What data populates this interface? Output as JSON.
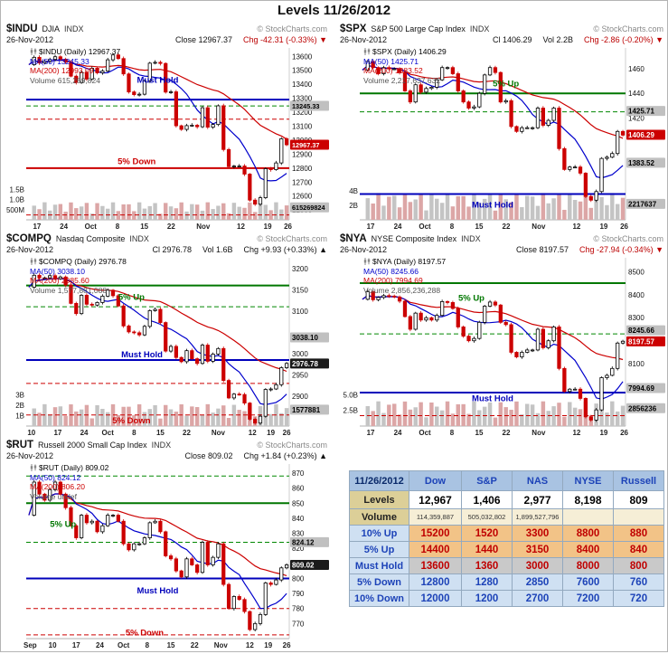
{
  "page_title": "Levels 11/26/2012",
  "chart_data": [
    {
      "type": "candlestick",
      "symbol": "$INDU",
      "name": "DJIA",
      "exchange": "INDX",
      "copyright": "© StockCharts.com",
      "date": "26-Nov-2012",
      "quote": "Close 12967.37",
      "vol": "",
      "chg": "Chg -42.31 (-0.33%) ▼",
      "dir": "down",
      "legend": {
        "main": "$INDU (Daily) 12967.37",
        "ma50": "MA(50) 13245.33",
        "ma200": "MA(200) 12993.09",
        "volume": "Volume 615,269,824"
      },
      "y_min": 12430,
      "y_max": 13660,
      "y_ticks": [
        13600,
        13500,
        13400,
        13300,
        13200,
        13100,
        13000,
        12900,
        12800,
        12700,
        12600,
        12500
      ],
      "vol_ticks": [
        {
          "t": "1.5B",
          "v": 1.5
        },
        {
          "t": "1.0B",
          "v": 1.0
        },
        {
          "t": "500M",
          "v": 0.5
        }
      ],
      "vol_max": 2.2,
      "vol_avg": 0.72,
      "tags": [
        {
          "t": "13245.33",
          "v": 13245.33,
          "k": "gray"
        },
        {
          "t": "12967.37",
          "v": 12967.37,
          "k": "red"
        },
        {
          "t": "615269824",
          "vol": 0.615,
          "k": "gray"
        }
      ],
      "levels": [
        {
          "v": 13290,
          "c": "#0000bb",
          "s": "solid",
          "w": 2
        },
        {
          "v": 13245,
          "c": "#008800",
          "s": "dash",
          "w": 1
        },
        {
          "v": 13150,
          "c": "#cc0000",
          "s": "dash",
          "w": 1
        },
        {
          "v": 12800,
          "c": "#cc0000",
          "s": "solid",
          "w": 2
        },
        {
          "v": 12465,
          "c": "#cc0000",
          "s": "dash",
          "w": 1
        }
      ],
      "ann": [
        {
          "t": "Must Hold",
          "v": 13430,
          "x": 0.5,
          "c": "#0000bb"
        },
        {
          "t": "5% Down",
          "v": 12848,
          "x": 0.42,
          "c": "#cc0000"
        }
      ],
      "x_labels": [
        {
          "t": "17",
          "f": 0.041
        },
        {
          "t": "24",
          "f": 0.143
        },
        {
          "t": "Oct",
          "f": 0.245
        },
        {
          "t": "8",
          "f": 0.347
        },
        {
          "t": "15",
          "f": 0.449
        },
        {
          "t": "22",
          "f": 0.551
        },
        {
          "t": "Nov",
          "f": 0.673
        },
        {
          "t": "12",
          "f": 0.816
        },
        {
          "t": "19",
          "f": 0.918
        },
        {
          "t": "26",
          "f": 0.995
        }
      ],
      "closes": [
        13540,
        13593,
        13553,
        13565,
        13578,
        13597,
        13579,
        13559,
        13458,
        13413,
        13485,
        13437,
        13515,
        13482,
        13495,
        13575,
        13610,
        13584,
        13474,
        13345,
        13326,
        13329,
        13424,
        13551,
        13557,
        13549,
        13344,
        13346,
        13103,
        13077,
        13104,
        13107,
        13096,
        13232,
        13093,
        13112,
        13246,
        12933,
        12811,
        12815,
        12815,
        12757,
        12571,
        12542,
        12588,
        12796,
        12789,
        12837,
        13010,
        12967
      ]
    },
    {
      "type": "candlestick",
      "symbol": "$SPX",
      "name": "S&P 500 Large Cap Index",
      "exchange": "INDX",
      "copyright": "© StockCharts.com",
      "date": "26-Nov-2012",
      "quote": "Cl 1406.29",
      "vol": "Vol 2.2B",
      "chg": "Chg -2.86 (-0.20%) ▼",
      "dir": "down",
      "legend": {
        "main": "$SPX (Daily) 1406.29",
        "ma50": "MA(50) 1425.71",
        "ma200": "MA(200) 1383.52",
        "volume": "Volume 2,217,637,632"
      },
      "y_min": 1337,
      "y_max": 1477,
      "y_ticks": [
        1460,
        1440,
        1420
      ],
      "vol_ticks": [
        {
          "t": "4B",
          "v": 4
        },
        {
          "t": "2B",
          "v": 2
        }
      ],
      "vol_max": 6.2,
      "vol_avg": 3.1,
      "tags": [
        {
          "t": "1425.71",
          "v": 1425.71,
          "k": "gray"
        },
        {
          "t": "1406.29",
          "v": 1406.29,
          "k": "red"
        },
        {
          "t": "1383.52",
          "v": 1383.52,
          "k": "gray"
        },
        {
          "t": "2217637",
          "vol": 2.217,
          "k": "gray"
        }
      ],
      "levels": [
        {
          "v": 1440,
          "c": "#007700",
          "s": "solid",
          "w": 2
        },
        {
          "v": 1425,
          "c": "#008800",
          "s": "dash",
          "w": 1
        },
        {
          "v": 1358,
          "c": "#0000bb",
          "s": "solid",
          "w": 2
        }
      ],
      "ann": [
        {
          "t": "5% Up",
          "v": 1448,
          "x": 0.55,
          "c": "#007700"
        },
        {
          "t": "Must Hold",
          "v": 1349,
          "x": 0.5,
          "c": "#0000bb"
        }
      ],
      "x_labels": [
        {
          "t": "17",
          "f": 0.041
        },
        {
          "t": "24",
          "f": 0.143
        },
        {
          "t": "Oct",
          "f": 0.245
        },
        {
          "t": "8",
          "f": 0.347
        },
        {
          "t": "15",
          "f": 0.449
        },
        {
          "t": "22",
          "f": 0.551
        },
        {
          "t": "Nov",
          "f": 0.673
        },
        {
          "t": "12",
          "f": 0.816
        },
        {
          "t": "19",
          "f": 0.918
        },
        {
          "t": "26",
          "f": 0.995
        }
      ],
      "closes": [
        1459,
        1466,
        1461,
        1456,
        1461,
        1460,
        1460,
        1457,
        1442,
        1433,
        1447,
        1441,
        1444,
        1445,
        1451,
        1461,
        1461,
        1456,
        1442,
        1433,
        1428,
        1429,
        1440,
        1455,
        1461,
        1457,
        1433,
        1434,
        1413,
        1409,
        1412,
        1412,
        1412,
        1428,
        1414,
        1418,
        1428,
        1395,
        1378,
        1380,
        1380,
        1375,
        1356,
        1353,
        1360,
        1387,
        1388,
        1391,
        1409,
        1406
      ]
    },
    {
      "type": "candlestick",
      "symbol": "$COMPQ",
      "name": "Nasdaq Composite",
      "exchange": "INDX",
      "copyright": "© StockCharts.com",
      "date": "26-Nov-2012",
      "quote": "Cl 2976.78",
      "vol": "Vol 1.6B",
      "chg": "Chg +9.93 (+0.33%) ▲",
      "dir": "up",
      "legend": {
        "main": "$COMPQ (Daily) 2976.78",
        "ma50": "MA(50) 3038.10",
        "ma200": "MA(200) 2985.60",
        "volume": "Volume 1,577,881,088"
      },
      "y_min": 2830,
      "y_max": 3225,
      "y_ticks": [
        3200,
        3150,
        3100,
        3000,
        2950,
        2900
      ],
      "vol_ticks": [
        {
          "t": "3B",
          "v": 3
        },
        {
          "t": "2B",
          "v": 2
        },
        {
          "t": "1B",
          "v": 1
        }
      ],
      "vol_max": 4.2,
      "vol_avg": 1.75,
      "tags": [
        {
          "t": "3038.10",
          "v": 3038.1,
          "k": "gray"
        },
        {
          "t": "2976.78",
          "v": 2976.78,
          "k": "black"
        },
        {
          "t": "1577881",
          "vol": 1.578,
          "k": "gray"
        }
      ],
      "levels": [
        {
          "v": 3160,
          "c": "#007700",
          "s": "solid",
          "w": 2
        },
        {
          "v": 3110,
          "c": "#008800",
          "s": "dash",
          "w": 1
        },
        {
          "v": 2985,
          "c": "#0000bb",
          "s": "solid",
          "w": 2
        },
        {
          "v": 2930,
          "c": "#cc0000",
          "s": "dash",
          "w": 1
        },
        {
          "v": 2856,
          "c": "#cc0000",
          "s": "dash",
          "w": 1
        }
      ],
      "ann": [
        {
          "t": "5% Up",
          "v": 3133,
          "x": 0.4,
          "c": "#007700"
        },
        {
          "t": "Must Hold",
          "v": 2998,
          "x": 0.44,
          "c": "#0000bb"
        },
        {
          "t": "5% Down",
          "v": 2843,
          "x": 0.4,
          "c": "#cc0000"
        }
      ],
      "x_labels": [
        {
          "t": "10",
          "f": 0.02
        },
        {
          "t": "17",
          "f": 0.12
        },
        {
          "t": "24",
          "f": 0.22
        },
        {
          "t": "Oct",
          "f": 0.31
        },
        {
          "t": "8",
          "f": 0.41
        },
        {
          "t": "15",
          "f": 0.51
        },
        {
          "t": "22",
          "f": 0.61
        },
        {
          "t": "Nov",
          "f": 0.73
        },
        {
          "t": "12",
          "f": 0.86
        },
        {
          "t": "19",
          "f": 0.93
        },
        {
          "t": "26",
          "f": 0.99
        }
      ],
      "closes": [
        3156,
        3184,
        3178,
        3178,
        3183,
        3176,
        3180,
        3161,
        3118,
        3094,
        3137,
        3116,
        3114,
        3120,
        3135,
        3149,
        3136,
        3112,
        3065,
        3051,
        3049,
        3044,
        3064,
        3101,
        3104,
        3073,
        3006,
        3017,
        2991,
        2981,
        3007,
        2988,
        2977,
        3020,
        2982,
        2999,
        3012,
        2937,
        2896,
        2905,
        2904,
        2884,
        2846,
        2837,
        2853,
        2916,
        2917,
        2927,
        2967,
        2977
      ]
    },
    {
      "type": "candlestick",
      "symbol": "$NYA",
      "name": "NYSE Composite Index",
      "exchange": "INDX",
      "copyright": "© StockCharts.com",
      "date": "26-Nov-2012",
      "quote": "Close 8197.57",
      "vol": "",
      "chg": "Chg -27.94 (-0.34%) ▼",
      "dir": "down",
      "legend": {
        "main": "$NYA (Daily) 8197.57",
        "ma50": "MA(50) 8245.66",
        "ma200": "MA(200) 7994.69",
        "volume": "Volume 2,856,236,288"
      },
      "y_min": 7830,
      "y_max": 8560,
      "y_ticks": [
        8500,
        8400,
        8300,
        8100,
        7900
      ],
      "vol_ticks": [
        {
          "t": "5.0B",
          "v": 5
        },
        {
          "t": "2.5B",
          "v": 2.5
        }
      ],
      "vol_max": 7.0,
      "vol_avg": 3.3,
      "tags": [
        {
          "t": "8245.66",
          "v": 8245.66,
          "k": "gray"
        },
        {
          "t": "8197.57",
          "v": 8197.57,
          "k": "red"
        },
        {
          "t": "7994.69",
          "v": 7994.69,
          "k": "gray"
        },
        {
          "t": "2856236",
          "vol": 2.856,
          "k": "gray"
        }
      ],
      "levels": [
        {
          "v": 8450,
          "c": "#007700",
          "s": "solid",
          "w": 2
        },
        {
          "v": 8230,
          "c": "#008800",
          "s": "dash",
          "w": 1
        },
        {
          "v": 7975,
          "c": "#0000bb",
          "s": "solid",
          "w": 2
        },
        {
          "v": 7875,
          "c": "#cc0000",
          "s": "dash",
          "w": 1
        }
      ],
      "ann": [
        {
          "t": "5% Up",
          "v": 8385,
          "x": 0.42,
          "c": "#007700"
        },
        {
          "t": "Must Hold",
          "v": 7950,
          "x": 0.5,
          "c": "#0000bb"
        }
      ],
      "x_labels": [
        {
          "t": "17",
          "f": 0.041
        },
        {
          "t": "24",
          "f": 0.143
        },
        {
          "t": "Oct",
          "f": 0.245
        },
        {
          "t": "8",
          "f": 0.347
        },
        {
          "t": "15",
          "f": 0.449
        },
        {
          "t": "22",
          "f": 0.551
        },
        {
          "t": "Nov",
          "f": 0.673
        },
        {
          "t": "12",
          "f": 0.816
        },
        {
          "t": "19",
          "f": 0.918
        },
        {
          "t": "26",
          "f": 0.995
        }
      ],
      "closes": [
        8380,
        8413,
        8378,
        8388,
        8396,
        8394,
        8390,
        8372,
        8305,
        8250,
        8320,
        8290,
        8300,
        8290,
        8310,
        8370,
        8366,
        8340,
        8260,
        8220,
        8200,
        8210,
        8280,
        8350,
        8368,
        8355,
        8280,
        8270,
        8150,
        8130,
        8150,
        8160,
        8160,
        8250,
        8170,
        8200,
        8260,
        8080,
        7980,
        7990,
        7990,
        7950,
        7870,
        7856,
        7900,
        8040,
        8050,
        8080,
        8190,
        8198
      ]
    },
    {
      "type": "candlestick",
      "symbol": "$RUT",
      "name": "Russell 2000 Small Cap Index",
      "exchange": "INDX",
      "copyright": "© StockCharts.com",
      "date": "26-Nov-2012",
      "quote": "Close 809.02",
      "vol": "",
      "chg": "Chg +1.84 (+0.23%) ▲",
      "dir": "up",
      "legend": {
        "main": "$RUT (Daily) 809.02",
        "ma50": "MA(50) 824.12",
        "ma200": "MA(200) 806.20",
        "volume": "Volume undef"
      },
      "y_min": 760,
      "y_max": 876,
      "y_ticks": [
        870,
        860,
        850,
        840,
        830,
        820,
        810,
        800,
        790,
        780,
        770
      ],
      "vol_ticks": [],
      "vol_max": null,
      "vol_avg": null,
      "tags": [
        {
          "t": "824.12",
          "v": 824.12,
          "k": "gray"
        },
        {
          "t": "809.02",
          "v": 809.02,
          "k": "black"
        }
      ],
      "levels": [
        {
          "v": 868,
          "c": "#008800",
          "s": "dash",
          "w": 1
        },
        {
          "v": 850,
          "c": "#007700",
          "s": "solid",
          "w": 2
        },
        {
          "v": 824,
          "c": "#008800",
          "s": "dash",
          "w": 1
        },
        {
          "v": 800,
          "c": "#0000bb",
          "s": "solid",
          "w": 2
        },
        {
          "v": 780,
          "c": "#cc0000",
          "s": "dash",
          "w": 1
        },
        {
          "v": 762.5,
          "c": "#cc0000",
          "s": "dash",
          "w": 1
        }
      ],
      "ann": [
        {
          "t": "5% Up",
          "v": 836,
          "x": 0.14,
          "c": "#007700"
        },
        {
          "t": "Must Hold",
          "v": 792,
          "x": 0.5,
          "c": "#0000bb"
        },
        {
          "t": "5% Down",
          "v": 764,
          "x": 0.45,
          "c": "#cc0000"
        }
      ],
      "x_labels": [
        {
          "t": "Sep",
          "f": 0.015
        },
        {
          "t": "10",
          "f": 0.1
        },
        {
          "t": "17",
          "f": 0.19
        },
        {
          "t": "24",
          "f": 0.28
        },
        {
          "t": "Oct",
          "f": 0.37
        },
        {
          "t": "8",
          "f": 0.46
        },
        {
          "t": "15",
          "f": 0.55
        },
        {
          "t": "22",
          "f": 0.64
        },
        {
          "t": "Nov",
          "f": 0.74
        },
        {
          "t": "12",
          "f": 0.85
        },
        {
          "t": "19",
          "f": 0.92
        },
        {
          "t": "26",
          "f": 0.99
        }
      ],
      "closes": [
        842,
        864,
        856,
        852,
        859,
        864,
        856,
        847,
        835,
        827,
        842,
        837,
        838,
        831,
        835,
        842,
        842,
        838,
        823,
        819,
        823,
        823,
        827,
        837,
        838,
        831,
        815,
        813,
        805,
        801,
        813,
        809,
        804,
        824,
        809,
        814,
        823,
        796,
        780,
        788,
        786,
        778,
        766,
        770,
        776,
        797,
        796,
        799,
        807,
        809
      ]
    }
  ],
  "table": {
    "header": {
      "date": "11/26/2012",
      "cols": [
        "Dow",
        "S&P",
        "NAS",
        "NYSE",
        "Russell"
      ]
    },
    "rows": [
      {
        "label": "Levels",
        "style": "levels",
        "values": [
          "12,967",
          "1,406",
          "2,977",
          "8,198",
          "809"
        ]
      },
      {
        "label": "Volume",
        "style": "volume",
        "values": [
          "114,359,887",
          "505,032,802",
          "1,899,527,796",
          "",
          ""
        ]
      },
      {
        "label": "10% Up",
        "style": "up",
        "values": [
          "15200",
          "1520",
          "3300",
          "8800",
          "880"
        ]
      },
      {
        "label": "5% Up",
        "style": "up",
        "values": [
          "14400",
          "1440",
          "3150",
          "8400",
          "840"
        ]
      },
      {
        "label": "Must Hold",
        "style": "hold",
        "values": [
          "13600",
          "1360",
          "3000",
          "8000",
          "800"
        ]
      },
      {
        "label": "5% Down",
        "style": "down",
        "values": [
          "12800",
          "1280",
          "2850",
          "7600",
          "760"
        ]
      },
      {
        "label": "10% Down",
        "style": "down",
        "values": [
          "12000",
          "1200",
          "2700",
          "7200",
          "720"
        ]
      }
    ]
  }
}
